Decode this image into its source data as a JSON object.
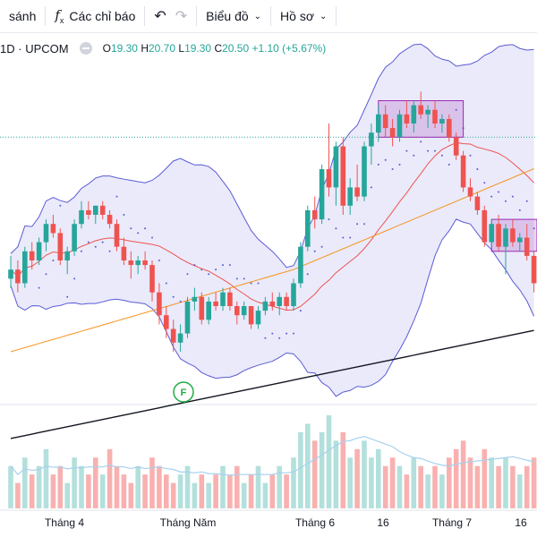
{
  "toolbar": {
    "compare_label": "sánh",
    "indicators_label": "Các chỉ báo",
    "indicators_icon": "fx-icon",
    "undo_icon": "undo-icon",
    "redo_icon": "redo-icon",
    "chart_type_label": "Biểu đồ",
    "profile_label": "Hồ sơ"
  },
  "legend": {
    "interval": "1D",
    "separator": "·",
    "exchange": "UPCOM",
    "o_key": "O",
    "o_val": "19.30",
    "h_key": "H",
    "h_val": "20.70",
    "l_key": "L",
    "l_val": "19.30",
    "c_key": "C",
    "c_val": "20.50",
    "change": "+1.10 (+5.67%)"
  },
  "colors": {
    "up": "#26a69a",
    "down": "#ef5350",
    "bollinger_band": "#5b5bd6",
    "ma_orange": "#f7931e",
    "ma_black": "#131722",
    "volume_ma": "#a7d1ee"
  },
  "chart_data": {
    "type": "candlestick",
    "x_ticks": [
      "Tháng 4",
      "Tháng Năm",
      "Tháng 6",
      "16",
      "Tháng 7",
      "16"
    ],
    "price_range": [
      14.0,
      24.0
    ],
    "current_price_line": 20.7,
    "earnings_marker": "F",
    "candles": [
      [
        17.6,
        18.1,
        17.4,
        17.8
      ],
      [
        17.8,
        18.0,
        17.3,
        17.5
      ],
      [
        17.5,
        18.3,
        17.4,
        18.2
      ],
      [
        18.2,
        18.4,
        17.8,
        18.0
      ],
      [
        18.0,
        18.5,
        17.9,
        18.4
      ],
      [
        18.4,
        18.9,
        18.2,
        18.8
      ],
      [
        18.8,
        19.0,
        18.5,
        18.6
      ],
      [
        18.6,
        18.7,
        17.9,
        18.0
      ],
      [
        18.0,
        18.3,
        17.7,
        18.2
      ],
      [
        18.2,
        18.9,
        18.1,
        18.8
      ],
      [
        18.8,
        19.3,
        18.7,
        19.1
      ],
      [
        19.1,
        19.3,
        18.9,
        19.0
      ],
      [
        19.0,
        19.2,
        18.8,
        19.2
      ],
      [
        19.2,
        19.3,
        18.9,
        19.0
      ],
      [
        19.0,
        19.1,
        18.7,
        18.8
      ],
      [
        18.8,
        18.9,
        18.2,
        18.3
      ],
      [
        18.3,
        18.5,
        17.9,
        18.0
      ],
      [
        18.0,
        18.2,
        17.6,
        17.9
      ],
      [
        17.9,
        18.1,
        17.7,
        18.0
      ],
      [
        18.0,
        18.2,
        17.8,
        17.9
      ],
      [
        17.9,
        18.0,
        17.1,
        17.3
      ],
      [
        17.3,
        17.5,
        16.6,
        16.8
      ],
      [
        16.8,
        17.0,
        16.3,
        16.5
      ],
      [
        16.5,
        16.7,
        16.0,
        16.2
      ],
      [
        16.2,
        16.6,
        16.0,
        16.4
      ],
      [
        16.4,
        17.2,
        16.3,
        17.1
      ],
      [
        17.1,
        17.4,
        16.9,
        17.2
      ],
      [
        17.2,
        17.3,
        16.6,
        16.7
      ],
      [
        16.7,
        17.2,
        16.6,
        17.1
      ],
      [
        17.1,
        17.3,
        16.9,
        17.0
      ],
      [
        17.0,
        17.4,
        16.9,
        17.3
      ],
      [
        17.3,
        17.4,
        16.9,
        17.0
      ],
      [
        17.0,
        17.1,
        16.6,
        16.8
      ],
      [
        16.8,
        17.1,
        16.7,
        17.0
      ],
      [
        17.0,
        17.0,
        16.5,
        16.6
      ],
      [
        16.6,
        17.0,
        16.5,
        16.9
      ],
      [
        16.9,
        17.2,
        16.8,
        17.1
      ],
      [
        17.1,
        17.3,
        16.9,
        17.0
      ],
      [
        17.0,
        17.3,
        16.8,
        17.2
      ],
      [
        17.2,
        17.3,
        16.9,
        17.0
      ],
      [
        17.0,
        17.6,
        16.9,
        17.5
      ],
      [
        17.5,
        18.4,
        17.4,
        18.3
      ],
      [
        18.3,
        19.2,
        18.2,
        19.1
      ],
      [
        19.1,
        19.4,
        18.7,
        18.9
      ],
      [
        18.9,
        20.1,
        18.8,
        20.0
      ],
      [
        20.0,
        21.0,
        19.4,
        19.6
      ],
      [
        19.6,
        20.6,
        19.2,
        20.5
      ],
      [
        20.5,
        20.7,
        19.0,
        19.2
      ],
      [
        19.2,
        19.8,
        19.0,
        19.6
      ],
      [
        19.6,
        20.1,
        19.3,
        19.4
      ],
      [
        19.4,
        20.6,
        19.3,
        20.5
      ],
      [
        20.5,
        21.0,
        20.1,
        20.8
      ],
      [
        20.8,
        21.4,
        20.6,
        21.2
      ],
      [
        21.2,
        21.4,
        20.7,
        20.9
      ],
      [
        20.9,
        21.1,
        20.5,
        20.7
      ],
      [
        20.7,
        21.3,
        20.6,
        21.2
      ],
      [
        21.2,
        21.5,
        20.9,
        21.0
      ],
      [
        21.0,
        21.5,
        20.8,
        21.4
      ],
      [
        21.4,
        21.7,
        21.1,
        21.2
      ],
      [
        21.2,
        21.4,
        20.9,
        21.3
      ],
      [
        21.3,
        21.5,
        20.9,
        21.0
      ],
      [
        21.0,
        21.2,
        20.8,
        21.1
      ],
      [
        21.1,
        21.2,
        20.6,
        20.7
      ],
      [
        20.7,
        20.8,
        20.2,
        20.3
      ],
      [
        20.3,
        20.4,
        19.5,
        19.6
      ],
      [
        19.6,
        19.8,
        19.3,
        19.4
      ],
      [
        19.4,
        19.5,
        19.0,
        19.1
      ],
      [
        19.1,
        19.2,
        18.3,
        18.4
      ],
      [
        18.4,
        18.9,
        18.3,
        18.8
      ],
      [
        18.8,
        19.0,
        18.2,
        18.3
      ],
      [
        18.3,
        18.8,
        17.7,
        18.7
      ],
      [
        18.7,
        18.9,
        18.3,
        18.4
      ],
      [
        18.4,
        18.6,
        18.2,
        18.5
      ],
      [
        18.5,
        18.8,
        18.0,
        18.1
      ],
      [
        18.1,
        18.2,
        17.3,
        17.5
      ]
    ],
    "volume": [
      [
        5,
        0
      ],
      [
        3,
        1
      ],
      [
        6,
        0
      ],
      [
        4,
        1
      ],
      [
        5,
        0
      ],
      [
        7,
        0
      ],
      [
        4,
        1
      ],
      [
        5,
        1
      ],
      [
        3,
        0
      ],
      [
        6,
        0
      ],
      [
        5,
        0
      ],
      [
        4,
        1
      ],
      [
        6,
        1
      ],
      [
        4,
        0
      ],
      [
        7,
        1
      ],
      [
        5,
        1
      ],
      [
        4,
        1
      ],
      [
        3,
        1
      ],
      [
        5,
        0
      ],
      [
        4,
        1
      ],
      [
        6,
        1
      ],
      [
        5,
        1
      ],
      [
        4,
        1
      ],
      [
        3,
        1
      ],
      [
        4,
        0
      ],
      [
        5,
        0
      ],
      [
        3,
        0
      ],
      [
        4,
        1
      ],
      [
        3,
        0
      ],
      [
        4,
        1
      ],
      [
        5,
        0
      ],
      [
        4,
        1
      ],
      [
        5,
        1
      ],
      [
        3,
        0
      ],
      [
        4,
        1
      ],
      [
        5,
        0
      ],
      [
        3,
        0
      ],
      [
        4,
        1
      ],
      [
        5,
        0
      ],
      [
        4,
        1
      ],
      [
        6,
        0
      ],
      [
        9,
        0
      ],
      [
        10,
        0
      ],
      [
        8,
        1
      ],
      [
        9,
        0
      ],
      [
        11,
        0
      ],
      [
        8,
        0
      ],
      [
        9,
        1
      ],
      [
        6,
        0
      ],
      [
        7,
        1
      ],
      [
        8,
        0
      ],
      [
        6,
        0
      ],
      [
        7,
        0
      ],
      [
        5,
        1
      ],
      [
        6,
        1
      ],
      [
        5,
        0
      ],
      [
        4,
        1
      ],
      [
        6,
        0
      ],
      [
        5,
        1
      ],
      [
        4,
        0
      ],
      [
        5,
        1
      ],
      [
        4,
        0
      ],
      [
        6,
        1
      ],
      [
        7,
        1
      ],
      [
        8,
        1
      ],
      [
        6,
        1
      ],
      [
        5,
        1
      ],
      [
        7,
        1
      ],
      [
        6,
        0
      ],
      [
        5,
        1
      ],
      [
        6,
        0
      ],
      [
        5,
        1
      ],
      [
        4,
        0
      ],
      [
        5,
        1
      ],
      [
        6,
        1
      ]
    ]
  }
}
